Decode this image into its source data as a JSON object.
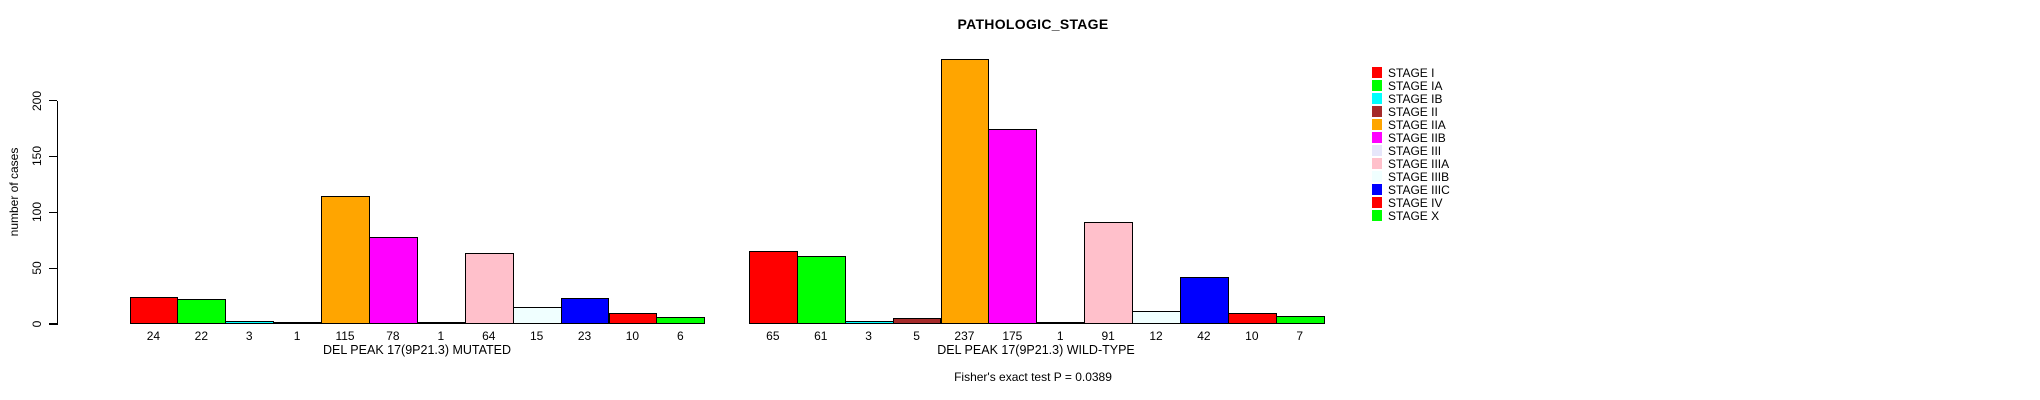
{
  "title": "PATHOLOGIC_STAGE",
  "footer": "Fisher's exact test P = 0.0389",
  "y_axis": {
    "label": "number of cases",
    "ticks": [
      0,
      50,
      100,
      150,
      200
    ]
  },
  "legend": {
    "items": [
      {
        "label": "STAGE I",
        "color": "#FF0000"
      },
      {
        "label": "STAGE IA",
        "color": "#00FF00"
      },
      {
        "label": "STAGE IB",
        "color": "#00FFFF"
      },
      {
        "label": "STAGE II",
        "color": "#A52A2A"
      },
      {
        "label": "STAGE IIA",
        "color": "#FFA500"
      },
      {
        "label": "STAGE IIB",
        "color": "#FF00FF"
      },
      {
        "label": "STAGE III",
        "color": "#E6E6FA"
      },
      {
        "label": "STAGE IIIA",
        "color": "#FFC0CB"
      },
      {
        "label": "STAGE IIIB",
        "color": "#F0FFFF"
      },
      {
        "label": "STAGE IIIC",
        "color": "#0000FF"
      },
      {
        "label": "STAGE IV",
        "color": "#FF0000"
      },
      {
        "label": "STAGE X",
        "color": "#00FF00"
      }
    ]
  },
  "chart_data": {
    "type": "bar",
    "title": "PATHOLOGIC_STAGE",
    "ylabel": "number of cases",
    "ylim": [
      0,
      240
    ],
    "tick_interval": 50,
    "grid": false,
    "legend_position": "right",
    "categories": [
      "STAGE I",
      "STAGE IA",
      "STAGE IB",
      "STAGE II",
      "STAGE IIA",
      "STAGE IIB",
      "STAGE III",
      "STAGE IIIA",
      "STAGE IIIB",
      "STAGE IIIC",
      "STAGE IV",
      "STAGE X"
    ],
    "colors": [
      "#FF0000",
      "#00FF00",
      "#00FFFF",
      "#A52A2A",
      "#FFA500",
      "#FF00FF",
      "#E6E6FA",
      "#FFC0CB",
      "#F0FFFF",
      "#0000FF",
      "#FF0000",
      "#00FF00"
    ],
    "groups": [
      {
        "label": "DEL PEAK 17(9P21.3) MUTATED",
        "values": [
          24,
          22,
          3,
          1,
          115,
          78,
          1,
          64,
          15,
          23,
          10,
          6
        ]
      },
      {
        "label": "DEL PEAK 17(9P21.3) WILD-TYPE",
        "values": [
          65,
          61,
          3,
          5,
          237,
          175,
          1,
          91,
          12,
          42,
          10,
          7
        ]
      }
    ],
    "annotation": "Fisher's exact test P = 0.0389"
  }
}
